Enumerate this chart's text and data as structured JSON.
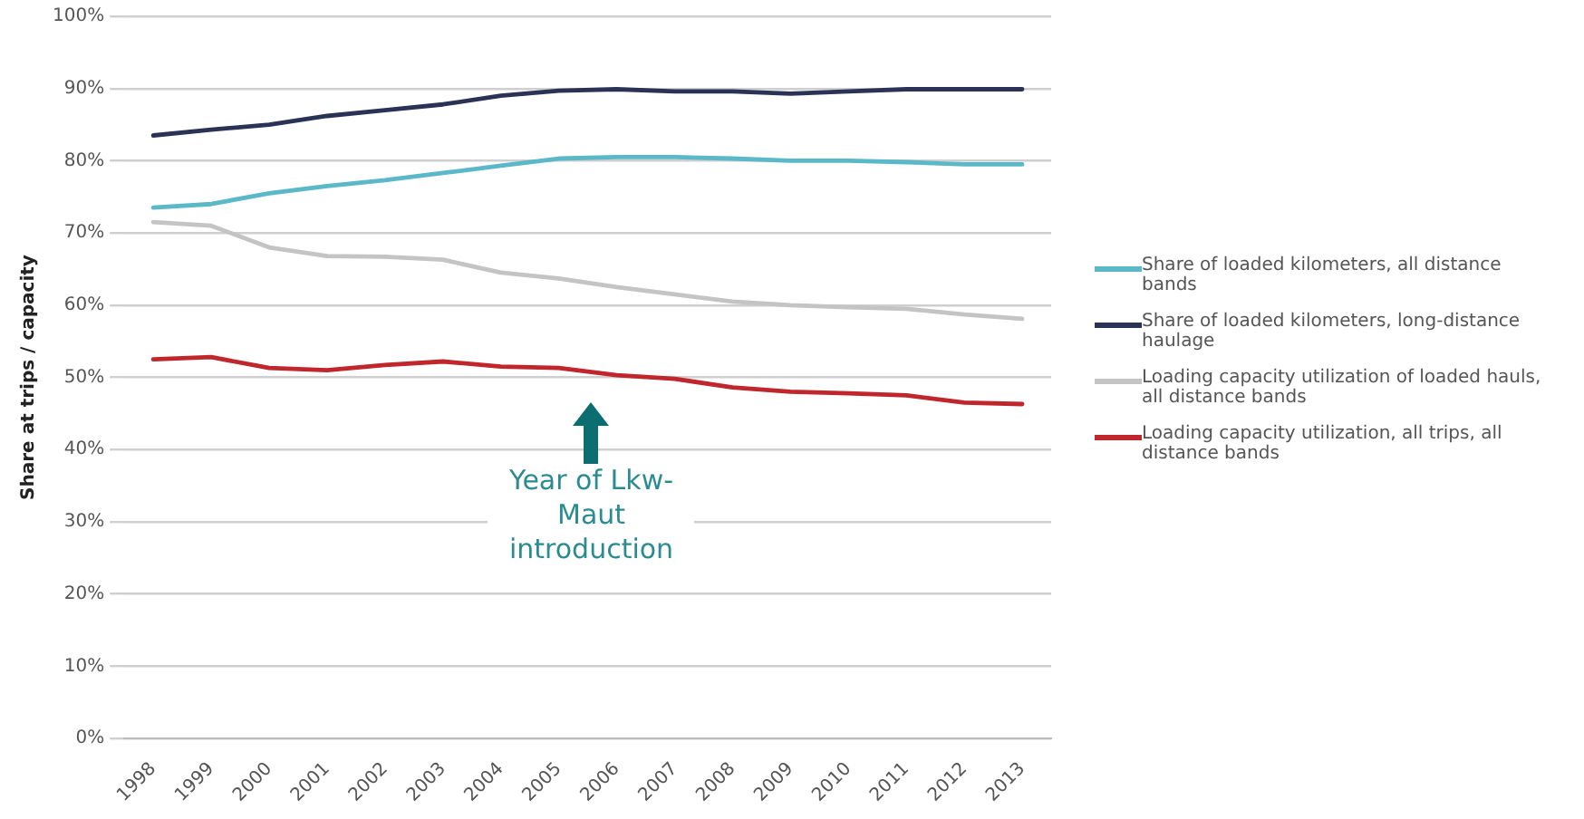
{
  "chart_data": {
    "type": "line",
    "ylabel": "Share at trips / capacity",
    "categories": [
      "1998",
      "1999",
      "2000",
      "2001",
      "2002",
      "2003",
      "2004",
      "2005",
      "2006",
      "2007",
      "2008",
      "2009",
      "2010",
      "2011",
      "2012",
      "2013"
    ],
    "series": [
      {
        "name": "Share of loaded kilometers, all distance bands",
        "color": "#5bb8c8",
        "values": [
          73.5,
          74,
          75.5,
          76.5,
          77.3,
          78.3,
          79.3,
          80.3,
          80.5,
          80.5,
          80.3,
          80,
          80,
          79.8,
          79.5,
          79.5
        ]
      },
      {
        "name": "Share of loaded kilometers, long-distance haulage",
        "color": "#2a3356",
        "values": [
          83.5,
          84.3,
          85,
          86.2,
          87,
          87.8,
          89,
          89.7,
          89.9,
          89.6,
          89.6,
          89.3,
          89.6,
          89.9,
          89.9,
          89.9
        ]
      },
      {
        "name": "Loading capacity utilization of loaded hauls, all distance bands",
        "color": "#c4c4c4",
        "values": [
          71.5,
          71,
          68,
          66.8,
          66.7,
          66.3,
          64.5,
          63.7,
          62.5,
          61.5,
          60.5,
          60,
          59.7,
          59.5,
          58.7,
          58.1
        ]
      },
      {
        "name": "Loading capacity utilization, all trips, all distance bands",
        "color": "#c0262b",
        "values": [
          52.5,
          52.8,
          51.3,
          51,
          51.7,
          52.2,
          51.5,
          51.3,
          50.3,
          49.8,
          48.6,
          48,
          47.8,
          47.5,
          46.5,
          46.3
        ]
      }
    ],
    "ylim": [
      0,
      100
    ],
    "yticks": [
      {
        "value": 0,
        "label": "0%"
      },
      {
        "value": 10,
        "label": "10%"
      },
      {
        "value": 20,
        "label": "20%"
      },
      {
        "value": 30,
        "label": "30%"
      },
      {
        "value": 40,
        "label": "40%"
      },
      {
        "value": 50,
        "label": "50%"
      },
      {
        "value": 60,
        "label": "60%"
      },
      {
        "value": 70,
        "label": "70%"
      },
      {
        "value": 80,
        "label": "80%"
      },
      {
        "value": 90,
        "label": "90%"
      },
      {
        "value": 100,
        "label": "100%"
      }
    ],
    "annotations": [
      "Year of Lkw-Maut introduction"
    ],
    "grid": "y",
    "legend": "right",
    "marker": "none",
    "line_style": "solid"
  }
}
